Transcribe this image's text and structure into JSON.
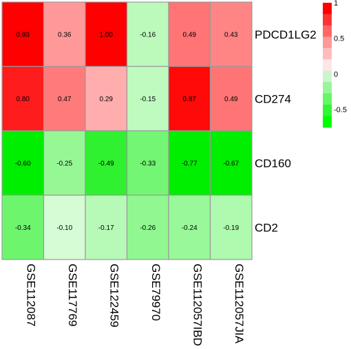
{
  "chart_data": {
    "type": "heatmap",
    "rows": [
      "PDCD1LG2",
      "CD274",
      "CD160",
      "CD2"
    ],
    "columns": [
      "GSE112087",
      "GSE117769",
      "GSE122459",
      "GSE79970",
      "GSE112057IBD",
      "GSE112057JIA"
    ],
    "values": [
      [
        0.93,
        0.36,
        1.0,
        -0.16,
        0.49,
        0.43
      ],
      [
        0.8,
        0.47,
        0.29,
        -0.15,
        0.87,
        0.49
      ],
      [
        -0.6,
        -0.25,
        -0.49,
        -0.33,
        -0.77,
        -0.67
      ],
      [
        -0.34,
        -0.1,
        -0.17,
        -0.26,
        -0.24,
        -0.19
      ]
    ],
    "value_labels": [
      [
        "0.93",
        "0.36",
        "1.00",
        "-0.16",
        "0.49",
        "0.43"
      ],
      [
        "0.80",
        "0.47",
        "0.29",
        "-0.15",
        "0.87",
        "0.49"
      ],
      [
        "-0.60",
        "-0.25",
        "-0.49",
        "-0.33",
        "-0.77",
        "-0.67"
      ],
      [
        "-0.34",
        "-0.10",
        "-0.17",
        "-0.26",
        "-0.24",
        "-0.19"
      ]
    ],
    "legend": {
      "placement": "top-right",
      "range": [
        -0.75,
        1.0
      ],
      "tick_values": [
        1,
        0.5,
        0,
        -0.5
      ],
      "tick_labels": [
        "1",
        "0.5",
        "0",
        "-0.5"
      ],
      "colors": [
        "#00ff00",
        "#33f533",
        "#66f566",
        "#99f599",
        "#ccf5cc",
        "#ffe6e6",
        "#ffbdbd",
        "#ff9999",
        "#ff6666",
        "#ff3333",
        "#ff0000"
      ]
    },
    "colors": {
      "cell_border": "#999999",
      "text": "#000000"
    }
  }
}
